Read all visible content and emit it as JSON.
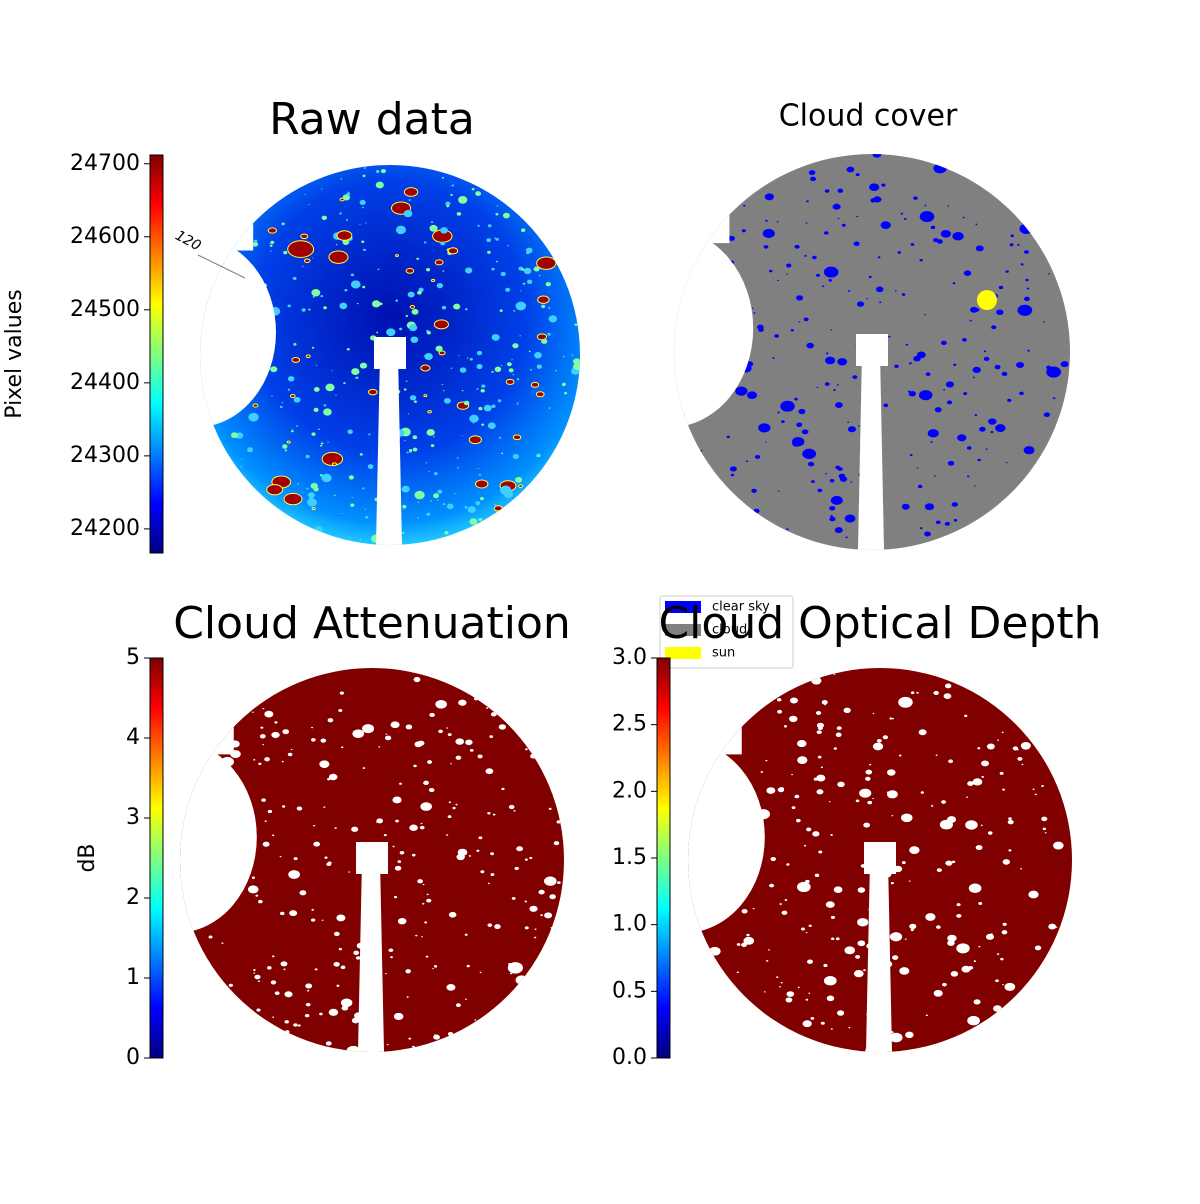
{
  "chart_data": [
    {
      "type": "image",
      "title": "Raw data",
      "colormap": "jet",
      "ylabel": "Pixel values",
      "ylim": [
        24167,
        24712
      ],
      "yticks": [
        24200,
        24300,
        24400,
        24500,
        24600,
        24700
      ],
      "annotations": [
        "120"
      ]
    },
    {
      "type": "image",
      "title": "Cloud cover",
      "legend": [
        {
          "name": "clear sky",
          "color": "#0000ff"
        },
        {
          "name": "cloud",
          "color": "#808080"
        },
        {
          "name": "sun",
          "color": "#ffff00"
        }
      ]
    },
    {
      "type": "image",
      "title": "Cloud Attenuation",
      "colormap": "jet",
      "ylabel": "dB",
      "ylim": [
        0,
        5
      ],
      "yticks": [
        0,
        1,
        2,
        3,
        4,
        5
      ]
    },
    {
      "type": "image",
      "title": "Cloud Optical Depth",
      "colormap": "jet",
      "ylim": [
        0,
        3
      ],
      "yticks": [
        {
          "value": 0,
          "label": "0.0"
        },
        {
          "value": 0.5,
          "label": "0.5"
        },
        {
          "value": 1,
          "label": "1.0"
        },
        {
          "value": 1.5,
          "label": "1.5"
        },
        {
          "value": 2,
          "label": "2.0"
        },
        {
          "value": 2.5,
          "label": "2.5"
        },
        {
          "value": 3,
          "label": "3.0"
        }
      ]
    }
  ]
}
